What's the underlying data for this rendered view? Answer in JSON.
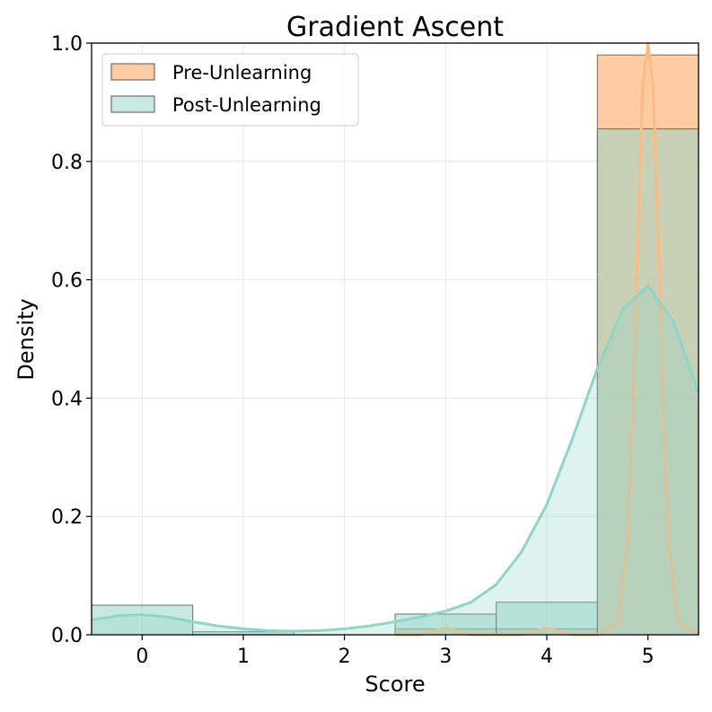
{
  "chart_data": {
    "type": "bar",
    "title": "Gradient Ascent",
    "xlabel": "Score",
    "ylabel": "Density",
    "xlim": [
      -0.5,
      5.5
    ],
    "ylim": [
      0,
      1.0
    ],
    "xticks": [
      "0",
      "1",
      "2",
      "3",
      "4",
      "5"
    ],
    "yticks": [
      "0.0",
      "0.2",
      "0.4",
      "0.6",
      "0.8",
      "1.0"
    ],
    "grid": true,
    "legend_position": "top-left",
    "bin_edges": [
      -0.5,
      0.5,
      1.5,
      2.5,
      3.5,
      4.5,
      5.5
    ],
    "series": [
      {
        "name": "Pre-Unlearning",
        "color": "#fdbb84",
        "values": [
          0.0,
          0.0,
          0.0,
          0.01,
          0.01,
          0.98
        ],
        "kde_x": [
          2.5,
          2.75,
          2.85,
          2.95,
          3.0,
          3.05,
          3.15,
          3.25,
          3.5,
          3.75,
          3.85,
          3.95,
          4.0,
          4.05,
          4.15,
          4.25,
          4.5,
          4.7,
          4.8,
          4.85,
          4.9,
          4.95,
          5.0,
          5.05,
          5.1,
          5.15,
          5.2,
          5.3,
          5.5
        ],
        "kde_y": [
          0.0,
          0.0,
          0.004,
          0.01,
          0.011,
          0.01,
          0.004,
          0.0,
          0.0,
          0.0,
          0.004,
          0.01,
          0.011,
          0.01,
          0.004,
          0.0,
          0.0,
          0.02,
          0.16,
          0.38,
          0.68,
          0.93,
          1.0,
          0.93,
          0.68,
          0.38,
          0.16,
          0.02,
          0.0
        ]
      },
      {
        "name": "Post-Unlearning",
        "color": "#91d4c8",
        "values": [
          0.05,
          0.005,
          0.0,
          0.035,
          0.055,
          0.855
        ],
        "kde_x": [
          -0.5,
          -0.25,
          0.0,
          0.25,
          0.5,
          0.75,
          1.0,
          1.25,
          1.5,
          1.75,
          2.0,
          2.25,
          2.5,
          2.75,
          3.0,
          3.25,
          3.5,
          3.75,
          4.0,
          4.25,
          4.5,
          4.75,
          5.0,
          5.25,
          5.5
        ],
        "kde_y": [
          0.025,
          0.032,
          0.034,
          0.03,
          0.022,
          0.015,
          0.01,
          0.007,
          0.006,
          0.007,
          0.01,
          0.015,
          0.022,
          0.03,
          0.04,
          0.055,
          0.085,
          0.14,
          0.22,
          0.33,
          0.45,
          0.55,
          0.59,
          0.53,
          0.41
        ]
      }
    ]
  }
}
